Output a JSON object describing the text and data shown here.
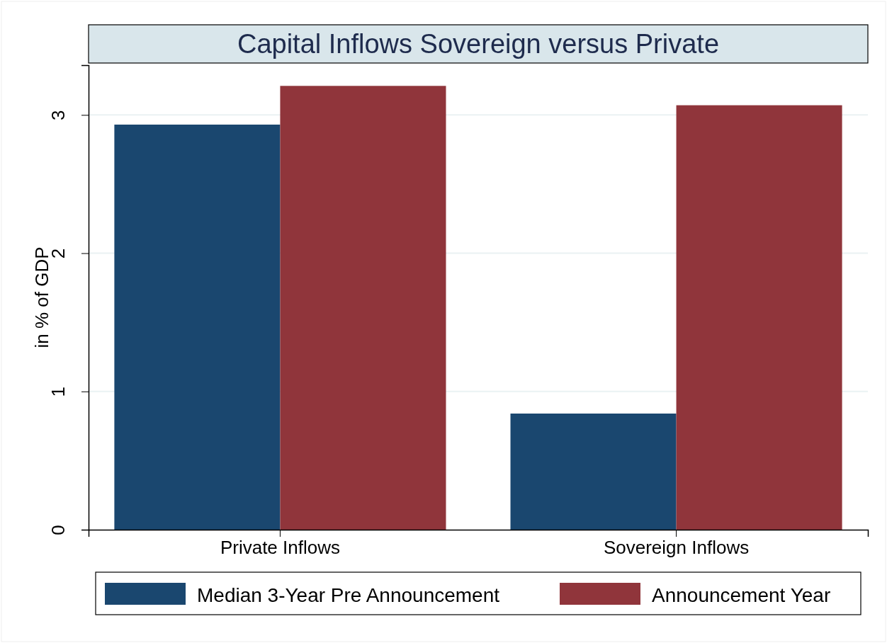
{
  "chart_data": {
    "type": "bar",
    "title": "Capital Inflows Sovereign versus Private",
    "ylabel": "in % of GDP",
    "categories": [
      "Private Inflows",
      "Sovereign Inflows"
    ],
    "series": [
      {
        "name": "Median 3-Year Pre Announcement",
        "color": "#1a476f",
        "values": [
          2.93,
          0.84
        ]
      },
      {
        "name": "Announcement Year",
        "color": "#90353b",
        "values": [
          3.21,
          3.07
        ]
      }
    ],
    "ylim": [
      0,
      3.36
    ],
    "yticks": [
      0,
      1,
      2,
      3
    ],
    "grid": "y",
    "legend": "bottom"
  }
}
